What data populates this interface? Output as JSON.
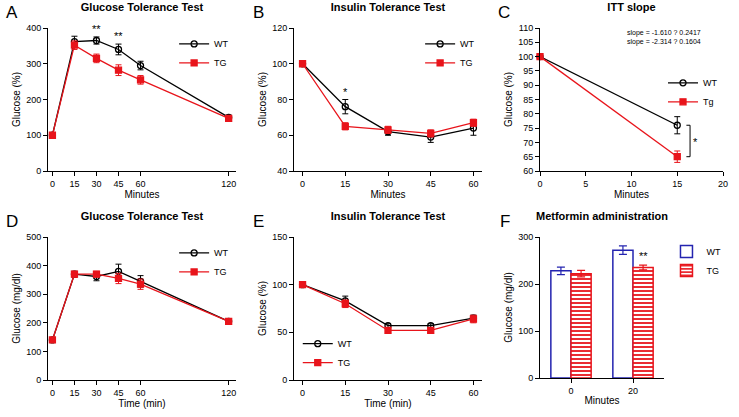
{
  "chart_data": [
    {
      "panel": "A",
      "type": "line",
      "title": "Glucose Tolerance Test",
      "x_label": "Minutes",
      "y_label": "Glucose (%)",
      "x": [
        0,
        15,
        30,
        45,
        60,
        120
      ],
      "series": [
        {
          "name": "WT",
          "color": "#000000",
          "marker": "circle-open",
          "line_style": "solid",
          "values": [
            100,
            362,
            365,
            340,
            295,
            150
          ],
          "errors": [
            0,
            15,
            10,
            15,
            12,
            6
          ]
        },
        {
          "name": "TG",
          "color": "#e8141b",
          "marker": "square",
          "line_style": "solid",
          "values": [
            100,
            352,
            315,
            282,
            255,
            147
          ],
          "errors": [
            0,
            12,
            12,
            15,
            12,
            6
          ]
        }
      ],
      "xlim": [
        -3,
        125
      ],
      "xticks": [
        0,
        15,
        30,
        45,
        60,
        120
      ],
      "ylim": [
        0,
        400
      ],
      "yticks": [
        0,
        100,
        200,
        300,
        400
      ],
      "grid": false,
      "legend": "top right",
      "annotations": [
        {
          "text": "**",
          "x": 30,
          "y": 376
        },
        {
          "text": "**",
          "x": 45,
          "y": 356
        }
      ]
    },
    {
      "panel": "B",
      "type": "line",
      "title": "Insulin Tolerance Test",
      "x_label": "Minutes",
      "y_label": "Glucose (%)",
      "x": [
        0,
        15,
        30,
        45,
        60
      ],
      "series": [
        {
          "name": "WT",
          "color": "#000000",
          "marker": "circle-open",
          "line_style": "solid",
          "values": [
            100,
            76,
            62,
            59,
            64
          ],
          "errors": [
            0,
            4,
            2,
            3,
            4
          ]
        },
        {
          "name": "TG",
          "color": "#e8141b",
          "marker": "square",
          "line_style": "solid",
          "values": [
            100,
            65,
            63,
            61,
            67
          ],
          "errors": [
            0,
            2,
            2,
            2,
            2
          ]
        }
      ],
      "xlim": [
        -3,
        63
      ],
      "xticks": [
        0,
        15,
        30,
        45,
        60
      ],
      "ylim": [
        40,
        120
      ],
      "yticks": [
        40,
        60,
        80,
        100,
        120
      ],
      "grid": false,
      "legend": "top right",
      "annotations": [
        {
          "text": "*",
          "x": 15,
          "y": 80
        }
      ]
    },
    {
      "panel": "C",
      "type": "line",
      "title": "ITT slope",
      "x_label": "Minutes",
      "y_label": "Glucose (%)",
      "x": [
        0,
        15
      ],
      "series": [
        {
          "name": "WT",
          "color": "#000000",
          "marker": "circle-open",
          "line_style": "solid",
          "values": [
            100,
            76
          ],
          "errors": [
            0,
            3
          ]
        },
        {
          "name": "Tg",
          "color": "#e8141b",
          "marker": "square",
          "line_style": "solid",
          "values": [
            100,
            65
          ],
          "errors": [
            0,
            2
          ]
        }
      ],
      "xlim": [
        0,
        20
      ],
      "xticks": [
        0,
        5,
        10,
        15,
        20
      ],
      "ylim": [
        60,
        110
      ],
      "yticks": [
        60,
        65,
        70,
        75,
        80,
        85,
        90,
        95,
        100,
        105,
        110
      ],
      "grid": false,
      "legend": "right",
      "annotations": [
        {
          "text": "slope = -1.610 ? 0.2417",
          "x": 13.5,
          "y": 106
        },
        {
          "text": "slope = -2.314 ? 0.1604",
          "x": 13.5,
          "y": 103
        },
        {
          "text": "*",
          "x": 17,
          "y": 67.5,
          "bracket": [
            65,
            76
          ]
        }
      ]
    },
    {
      "panel": "D",
      "type": "line",
      "title": "Glucose Tolerance Test",
      "x_label": "Time (min)",
      "y_label": "Glucose (mg/dl)",
      "x": [
        0,
        15,
        30,
        45,
        60,
        120
      ],
      "series": [
        {
          "name": "WT",
          "color": "#000000",
          "marker": "circle-open",
          "line_style": "solid",
          "values": [
            140,
            370,
            362,
            380,
            345,
            205
          ],
          "errors": [
            8,
            10,
            15,
            25,
            20,
            8
          ]
        },
        {
          "name": "TG",
          "color": "#e8141b",
          "marker": "square",
          "line_style": "solid",
          "values": [
            140,
            370,
            370,
            355,
            335,
            205
          ],
          "errors": [
            8,
            10,
            10,
            18,
            18,
            8
          ]
        }
      ],
      "xlim": [
        -3,
        125
      ],
      "xticks": [
        0,
        15,
        30,
        45,
        60,
        120
      ],
      "ylim": [
        0,
        500
      ],
      "yticks": [
        0,
        100,
        200,
        300,
        400,
        500
      ],
      "grid": false,
      "legend": "top right"
    },
    {
      "panel": "E",
      "type": "line",
      "title": "Insulin Tolerance Test",
      "x_label": "Time (min)",
      "y_label": "Glucose (%)",
      "x": [
        0,
        15,
        30,
        45,
        60
      ],
      "series": [
        {
          "name": "WT",
          "color": "#000000",
          "marker": "circle-open",
          "line_style": "solid",
          "values": [
            100,
            83,
            57,
            57,
            65
          ],
          "errors": [
            0,
            5,
            2,
            2,
            3
          ]
        },
        {
          "name": "TG",
          "color": "#e8141b",
          "marker": "square",
          "line_style": "solid",
          "values": [
            100,
            80,
            52,
            52,
            64
          ],
          "errors": [
            0,
            4,
            2,
            2,
            4
          ]
        }
      ],
      "xlim": [
        -3,
        63
      ],
      "xticks": [
        0,
        15,
        30,
        45,
        60
      ],
      "ylim": [
        0,
        150
      ],
      "yticks": [
        0,
        50,
        100,
        150
      ],
      "grid": false,
      "legend": "bottom left"
    },
    {
      "panel": "F",
      "type": "bar",
      "title": "Metformin administration",
      "x_label": "Minutes",
      "y_label": "Glucose (mg/dl)",
      "categories": [
        "0",
        "20"
      ],
      "series": [
        {
          "name": "WT",
          "color": "#2424b0",
          "marker": "open",
          "values": [
            228,
            272
          ],
          "errors": [
            8,
            9
          ]
        },
        {
          "name": "TG",
          "color": "#e8141b",
          "marker": "hatched",
          "values": [
            222,
            235
          ],
          "errors": [
            7,
            5
          ]
        }
      ],
      "ylim": [
        0,
        300
      ],
      "yticks": [
        0,
        100,
        200,
        300
      ],
      "grid": false,
      "legend": "outside right",
      "annotations": [
        {
          "text": "**",
          "x": 1,
          "series": "TG",
          "y": 242
        }
      ]
    }
  ]
}
